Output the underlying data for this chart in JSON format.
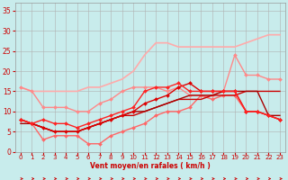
{
  "xlabel": "Vent moyen/en rafales ( km/h )",
  "background_color": "#c8ecec",
  "grid_color": "#b0b0b0",
  "xlim": [
    -0.5,
    23.5
  ],
  "ylim": [
    0,
    37
  ],
  "yticks": [
    0,
    5,
    10,
    15,
    20,
    25,
    30,
    35
  ],
  "xticks": [
    0,
    1,
    2,
    3,
    4,
    5,
    6,
    7,
    8,
    9,
    10,
    11,
    12,
    13,
    14,
    15,
    16,
    17,
    18,
    19,
    20,
    21,
    22,
    23
  ],
  "series": [
    {
      "y": [
        16,
        15,
        15,
        15,
        15,
        15,
        16,
        16,
        17,
        18,
        20,
        24,
        27,
        27,
        26,
        26,
        26,
        26,
        26,
        26,
        27,
        28,
        29,
        29
      ],
      "color": "#ffaaaa",
      "marker": null,
      "lw": 1.2,
      "ms": 0
    },
    {
      "y": [
        16,
        15,
        11,
        11,
        11,
        10,
        10,
        12,
        13,
        15,
        16,
        16,
        16,
        15,
        16,
        14,
        14,
        14,
        15,
        24,
        19,
        19,
        18,
        18
      ],
      "color": "#ff8888",
      "marker": "D",
      "lw": 1.0,
      "ms": 2
    },
    {
      "y": [
        8,
        7,
        3,
        4,
        4,
        4,
        2,
        2,
        4,
        5,
        6,
        7,
        9,
        10,
        10,
        11,
        14,
        13,
        14,
        14,
        10,
        10,
        9,
        8
      ],
      "color": "#ff6666",
      "marker": "D",
      "lw": 1.0,
      "ms": 2
    },
    {
      "y": [
        8,
        7,
        6,
        5,
        5,
        5,
        6,
        7,
        8,
        9,
        9,
        10,
        11,
        12,
        13,
        13,
        13,
        14,
        14,
        14,
        15,
        15,
        15,
        15
      ],
      "color": "#cc0000",
      "marker": null,
      "lw": 1.0,
      "ms": 0
    },
    {
      "y": [
        7,
        7,
        6,
        5,
        5,
        5,
        6,
        7,
        8,
        9,
        10,
        10,
        11,
        12,
        13,
        14,
        14,
        14,
        15,
        15,
        15,
        15,
        9,
        9
      ],
      "color": "#aa0000",
      "marker": null,
      "lw": 1.0,
      "ms": 0
    },
    {
      "y": [
        8,
        7,
        6,
        5,
        5,
        5,
        6,
        7,
        8,
        9,
        10,
        12,
        13,
        14,
        16,
        17,
        15,
        15,
        15,
        15,
        10,
        10,
        9,
        8
      ],
      "color": "#dd0000",
      "marker": "D",
      "lw": 1.0,
      "ms": 2
    },
    {
      "y": [
        8,
        7,
        8,
        7,
        7,
        6,
        7,
        8,
        9,
        10,
        11,
        15,
        16,
        16,
        17,
        15,
        15,
        15,
        15,
        15,
        10,
        10,
        9,
        8
      ],
      "color": "#ff2222",
      "marker": "D",
      "lw": 1.0,
      "ms": 2
    }
  ],
  "arrow_color": "#cc0000"
}
